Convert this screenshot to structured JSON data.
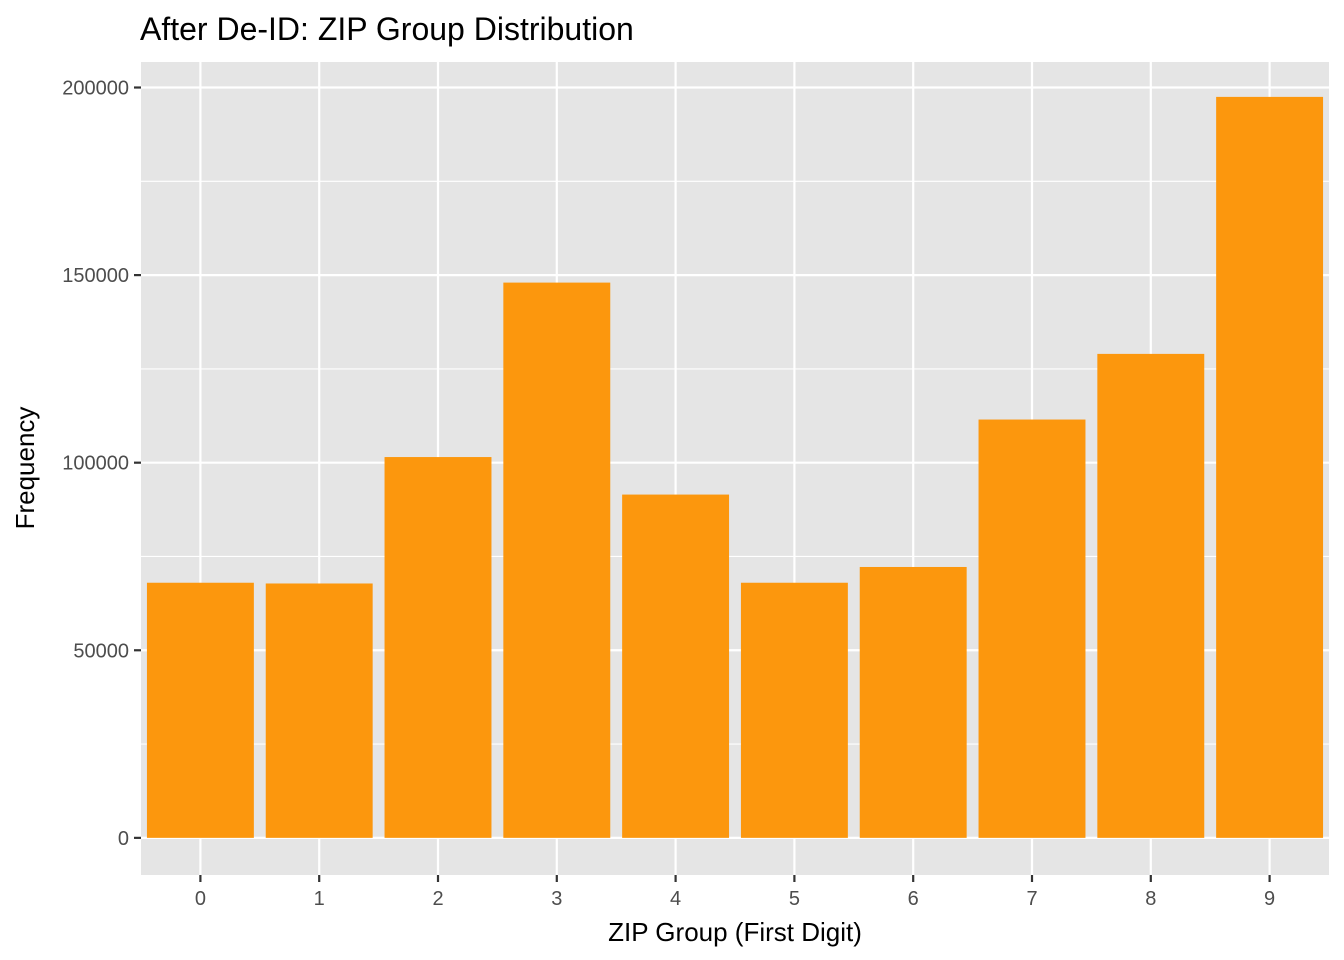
{
  "chart_data": {
    "type": "bar",
    "title": "After De-ID: ZIP Group Distribution",
    "xlabel": "ZIP Group (First Digit)",
    "ylabel": "Frequency",
    "categories": [
      "0",
      "1",
      "2",
      "3",
      "4",
      "5",
      "6",
      "7",
      "8",
      "9"
    ],
    "values": [
      68000,
      67800,
      101500,
      148000,
      91500,
      68000,
      72200,
      111500,
      129000,
      197500
    ],
    "ylim": [
      -9900,
      206800
    ],
    "yticks": [
      0,
      50000,
      100000,
      150000,
      200000
    ],
    "ytick_labels": [
      "0",
      "50000",
      "100000",
      "150000",
      "200000"
    ],
    "grid": true,
    "legend": "none",
    "colors": {
      "bar": "#FC970D",
      "panel": "#E5E5E5",
      "grid": "#FFFFFF",
      "tick": "#333333"
    }
  }
}
